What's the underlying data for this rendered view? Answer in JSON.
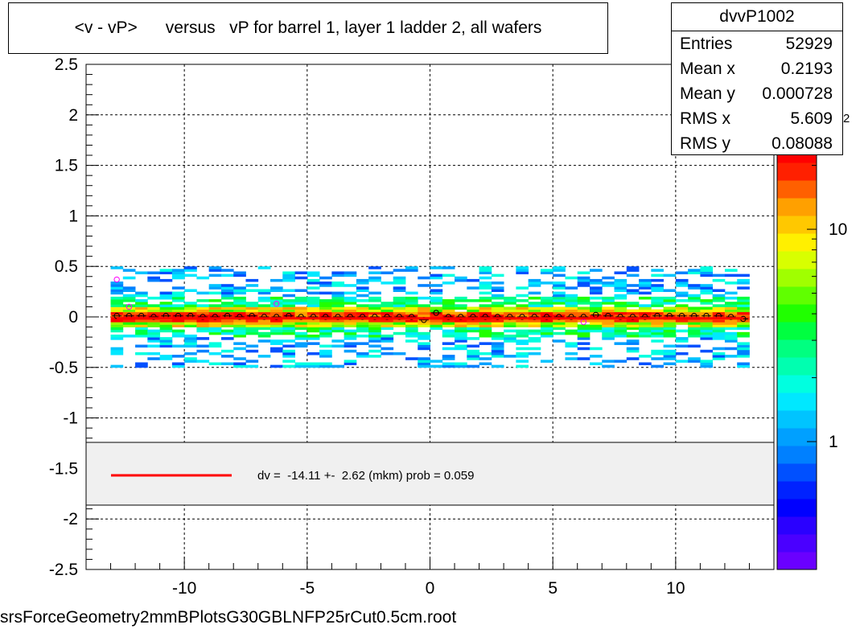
{
  "title": "<v - vP>      versus   vP for barrel 1, layer 1 ladder 2, all wafers",
  "footer_text": "srsForceGeometry2mmBPlotsG30GBLNFP25rCut0.5cm.root",
  "stats": {
    "name": "dvvP1002",
    "rows": [
      {
        "label": "Entries",
        "value": "52929"
      },
      {
        "label": "Mean x",
        "value": "0.2193"
      },
      {
        "label": "Mean y",
        "value": "0.000728"
      },
      {
        "label": "RMS x",
        "value": "5.609"
      },
      {
        "label": "RMS y",
        "value": "0.08088"
      }
    ]
  },
  "colors": {
    "fit_line": "#ff0000",
    "profile_marker": "#000000",
    "legend_fill": "#f0f0f0"
  },
  "chart_data": {
    "type": "heatmap",
    "title": "<v - vP>      versus   vP for barrel 1, layer 1 ladder 2, all wafers",
    "xlabel": "",
    "ylabel": "",
    "xlim": [
      -14,
      14
    ],
    "ylim": [
      -2.5,
      2.5
    ],
    "x_ticks": [
      -10,
      -5,
      0,
      5,
      10
    ],
    "y_ticks": [
      -2.5,
      -2,
      -1.5,
      -1,
      -0.5,
      0,
      0.5,
      1,
      1.5,
      2,
      2.5
    ],
    "grid": true,
    "colorbar": {
      "scale": "log",
      "ticks": [
        {
          "label": "1",
          "value": 1
        },
        {
          "label": "10",
          "value": 10
        }
      ],
      "max_label_partial": "2"
    },
    "density": {
      "x_range": [
        -13,
        13
      ],
      "core_halfwidth": 0.05,
      "halo_halfwidth": 0.5
    },
    "profile": {
      "x": [
        -12.75,
        -12.25,
        -11.75,
        -11.25,
        -10.75,
        -10.25,
        -9.75,
        -9.25,
        -8.75,
        -8.25,
        -7.75,
        -7.25,
        -6.75,
        -6.25,
        -5.75,
        -5.25,
        -4.75,
        -4.25,
        -3.75,
        -3.25,
        -2.75,
        -2.25,
        -1.75,
        -1.25,
        -0.75,
        -0.25,
        0.25,
        0.75,
        1.25,
        1.75,
        2.25,
        2.75,
        3.25,
        3.75,
        4.25,
        4.75,
        5.25,
        5.75,
        6.25,
        6.75,
        7.25,
        7.75,
        8.25,
        8.75,
        9.25,
        9.75,
        10.25,
        10.75,
        11.25,
        11.75,
        12.25,
        12.75
      ],
      "y": [
        0.01,
        0.01,
        0.01,
        0.0,
        0.01,
        0.01,
        0.01,
        0.0,
        0.0,
        0.01,
        0.0,
        0.01,
        0.0,
        0.0,
        0.01,
        0.0,
        0.0,
        0.0,
        0.0,
        0.0,
        0.0,
        0.0,
        0.0,
        0.0,
        0.0,
        -0.03,
        0.04,
        0.0,
        0.0,
        0.0,
        0.0,
        0.0,
        0.0,
        0.0,
        0.0,
        0.0,
        0.0,
        0.0,
        0.0,
        0.02,
        0.01,
        0.0,
        0.0,
        0.0,
        0.01,
        0.01,
        0.01,
        0.01,
        0.01,
        0.01,
        0.0,
        -0.02
      ]
    },
    "outliers": [
      {
        "x": -12.75,
        "y": 0.37
      },
      {
        "x": -12.25,
        "y": 0.1
      },
      {
        "x": -6.25,
        "y": 0.13
      },
      {
        "x": 6.25,
        "y": -0.05
      }
    ],
    "fit": {
      "x_range": [
        -12.75,
        12.75
      ],
      "y": -0.0141
    },
    "legend": {
      "text": "dv =  -14.11 +-  2.62 (mkm) prob = 0.059",
      "placement": "bottom"
    }
  }
}
